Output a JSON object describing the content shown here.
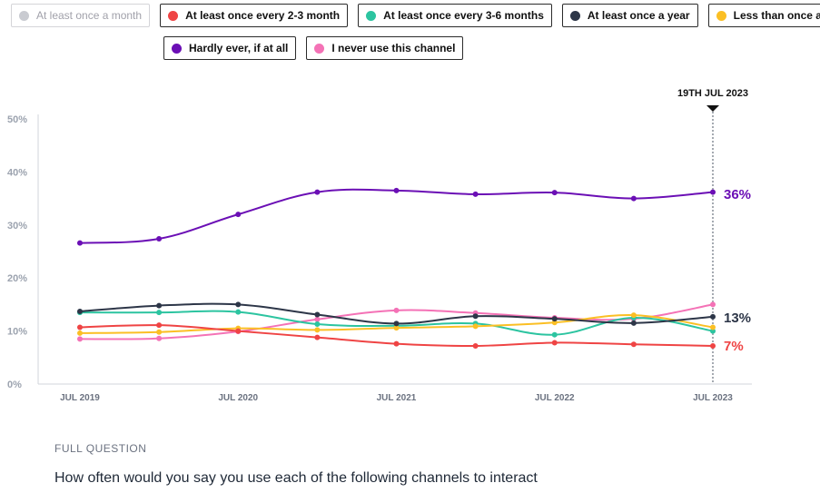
{
  "legend": [
    {
      "label": "At least once a month",
      "color": "#c9cbd1",
      "active": false
    },
    {
      "label": "At least once every 2-3 month",
      "color": "#ef4444",
      "active": true
    },
    {
      "label": "At least once every 3-6 months",
      "color": "#2cc4a0",
      "active": true
    },
    {
      "label": "At least once a year",
      "color": "#2d3648",
      "active": true
    },
    {
      "label": "Less than once a year",
      "color": "#fbbf24",
      "active": true
    },
    {
      "label": "Hardly ever, if at all",
      "color": "#6b0fb5",
      "active": true
    },
    {
      "label": "I never use this channel",
      "color": "#f472b6",
      "active": true
    }
  ],
  "marker_label": "19TH JUL 2023",
  "end_labels": [
    {
      "text": "36%",
      "color": "#6b0fb5"
    },
    {
      "text": "13%",
      "color": "#2d3648"
    },
    {
      "text": "7%",
      "color": "#ef4444"
    }
  ],
  "footer": {
    "label": "FULL QUESTION",
    "question": "How often would you say you use each of the following channels to interact"
  },
  "chart_data": {
    "type": "line",
    "x": [
      "Jul 2019",
      "Jan 2020",
      "Jul 2020",
      "Jan 2021",
      "Jul 2021",
      "Jan 2022",
      "Jul 2022",
      "Jan 2023",
      "Jul 2023"
    ],
    "x_tick_labels": [
      "JUL 2019",
      "JUL 2020",
      "JUL 2021",
      "JUL 2022",
      "JUL 2023"
    ],
    "x_tick_indices": [
      0,
      2,
      4,
      6,
      8
    ],
    "y_ticks": [
      "0%",
      "10%",
      "20%",
      "30%",
      "40%",
      "50%"
    ],
    "ylim": [
      0,
      50
    ],
    "series": [
      {
        "name": "Hardly ever, if at all",
        "color": "#6b0fb5",
        "values": [
          26.6,
          27.4,
          32.0,
          36.2,
          36.5,
          35.8,
          36.1,
          35.0,
          36.2
        ]
      },
      {
        "name": "I never use this channel",
        "color": "#f472b6",
        "values": [
          8.5,
          8.6,
          9.9,
          12.2,
          13.9,
          13.4,
          12.5,
          12.3,
          15.0
        ]
      },
      {
        "name": "At least once every 3-6 months",
        "color": "#2cc4a0",
        "values": [
          13.5,
          13.5,
          13.6,
          11.3,
          11.0,
          11.4,
          9.3,
          12.5,
          10.0
        ]
      },
      {
        "name": "Less than once a year",
        "color": "#fbbf24",
        "values": [
          9.6,
          9.8,
          10.5,
          10.2,
          10.6,
          10.9,
          11.6,
          13.0,
          10.7
        ]
      },
      {
        "name": "At least once a year",
        "color": "#2d3648",
        "values": [
          13.7,
          14.8,
          15.0,
          13.1,
          11.4,
          12.8,
          12.3,
          11.5,
          12.7
        ]
      },
      {
        "name": "At least once every 2-3 month",
        "color": "#ef4444",
        "values": [
          10.7,
          11.1,
          10.0,
          8.8,
          7.6,
          7.2,
          7.8,
          7.5,
          7.2
        ]
      }
    ]
  }
}
